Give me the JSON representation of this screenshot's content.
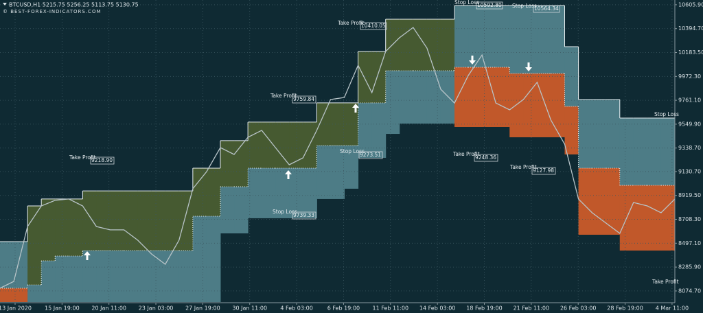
{
  "chart_data": {
    "type": "line",
    "title": "BTCUSD,H1  5215.75 5256.25 5113.75 5130.75",
    "subtitle": "© BEST-FOREX-INDICATORS.COM",
    "categories": [
      "13 Jan 2020",
      "15 Jan 19:00",
      "20 Jan 11:00",
      "23 Jan 03:00",
      "27 Jan 19:00",
      "30 Jan 11:00",
      "4 Feb 03:00",
      "6 Feb 19:00",
      "11 Feb 11:00",
      "14 Feb 03:00",
      "18 Feb 19:00",
      "21 Feb 11:00",
      "26 Feb 03:00",
      "28 Feb 19:00",
      "4 Mar 11:00"
    ],
    "ylim": [
      7977,
      10648
    ],
    "yticks": [
      {
        "value": 10605.9,
        "label": "10605.90"
      },
      {
        "value": 10394.7,
        "label": "10394.70"
      },
      {
        "value": 10183.5,
        "label": "10183.50"
      },
      {
        "value": 9972.3,
        "label": "9972.30"
      },
      {
        "value": 9761.1,
        "label": "9761.10"
      },
      {
        "value": 9549.9,
        "label": "9549.90"
      },
      {
        "value": 9338.7,
        "label": "9338.70"
      },
      {
        "value": 9130.7,
        "label": "9130.70"
      },
      {
        "value": 8919.5,
        "label": "8919.50"
      },
      {
        "value": 8708.3,
        "label": "8708.30"
      },
      {
        "value": 8497.1,
        "label": "8497.10"
      },
      {
        "value": 8285.9,
        "label": "8285.90"
      },
      {
        "value": 8074.7,
        "label": "8074.70"
      }
    ],
    "grid": true,
    "price": {
      "color": "#b8c4c8",
      "values": [
        8099,
        8159,
        8645,
        8827,
        8876,
        8888,
        8827,
        8645,
        8615,
        8615,
        8524,
        8402,
        8311,
        8524,
        8979,
        9130,
        9343,
        9282,
        9434,
        9495,
        9343,
        9191,
        9252,
        9495,
        9768,
        9786,
        10071,
        9829,
        10193,
        10314,
        10405,
        10223,
        9859,
        9737,
        9980,
        10162,
        9737,
        9677,
        9768,
        9920,
        9586,
        9373,
        8888,
        8766,
        8675,
        8584,
        8857,
        8827,
        8766,
        8888
      ]
    },
    "bands": {
      "up_color": "#465a31",
      "mid_color": "#4d7c86",
      "down_color": "#c1582a",
      "upper": [
        8511,
        8511,
        8827,
        8888,
        8888,
        8888,
        8960,
        8960,
        8960,
        8960,
        8960,
        8960,
        8960,
        8960,
        9161,
        9161,
        9404,
        9404,
        9568,
        9568,
        9568,
        9568,
        9568,
        9738,
        9738,
        9738,
        10193,
        10193,
        10478,
        10478,
        10478,
        10478,
        10478,
        10599,
        10599,
        10599,
        10599,
        10599,
        10599,
        10599,
        10599,
        10235,
        9768,
        9768,
        9768,
        9604,
        9604,
        9604,
        9604,
        9604
      ],
      "mid": [
        8099,
        8099,
        8129,
        8341,
        8384,
        8384,
        8432,
        8432,
        8432,
        8432,
        8432,
        8432,
        8432,
        8432,
        8736,
        8736,
        8997,
        8997,
        9161,
        9161,
        9161,
        9161,
        9161,
        9361,
        9361,
        9361,
        9738,
        9738,
        10023,
        10023,
        10023,
        10023,
        10023,
        10053,
        10053,
        10053,
        10053,
        9998,
        9998,
        9998,
        9998,
        9707,
        9161,
        9161,
        9161,
        9009,
        9009,
        9009,
        9009,
        9009
      ],
      "lower": [
        7977,
        7977,
        7977,
        7977,
        7977,
        7977,
        7977,
        7977,
        7977,
        7977,
        7977,
        7977,
        7977,
        7977,
        7977,
        7977,
        8584,
        8584,
        8718,
        8718,
        8718,
        8718,
        8718,
        8888,
        8888,
        8979,
        9252,
        9252,
        9464,
        9555,
        9555,
        9555,
        9555,
        9525,
        9525,
        9525,
        9525,
        9434,
        9434,
        9434,
        9434,
        9282,
        8572,
        8572,
        8572,
        8432,
        8432,
        8432,
        8432,
        8432
      ],
      "trend": [
        "down",
        "down",
        "up",
        "up",
        "up",
        "up",
        "up",
        "up",
        "up",
        "up",
        "up",
        "up",
        "up",
        "up",
        "up",
        "up",
        "up",
        "up",
        "up",
        "up",
        "up",
        "up",
        "up",
        "up",
        "up",
        "up",
        "up",
        "up",
        "up",
        "up",
        "up",
        "up",
        "up",
        "down",
        "down",
        "down",
        "down",
        "down",
        "down",
        "down",
        "down",
        "down",
        "down",
        "down",
        "down",
        "down",
        "down",
        "down",
        "down",
        "down"
      ]
    },
    "annotations": [
      {
        "label": "Take Profit",
        "value": "9218.90"
      },
      {
        "label": "Take Profit",
        "value": "9759.84"
      },
      {
        "label": "Take Profit",
        "value": "10410.05"
      },
      {
        "label": "Stop Loss",
        "value": "9273.51"
      },
      {
        "label": "Stop Loss",
        "value": "9739.33"
      },
      {
        "label": "Stop Loss",
        "value": "10592.80"
      },
      {
        "label": "Stop Loss",
        "value": "10564.34"
      },
      {
        "label": "Take Profit",
        "value": "9248.36"
      },
      {
        "label": "Take Profit",
        "value": "9127.98"
      },
      {
        "label": "Stop Loss"
      },
      {
        "label": "Take Profit"
      }
    ]
  }
}
